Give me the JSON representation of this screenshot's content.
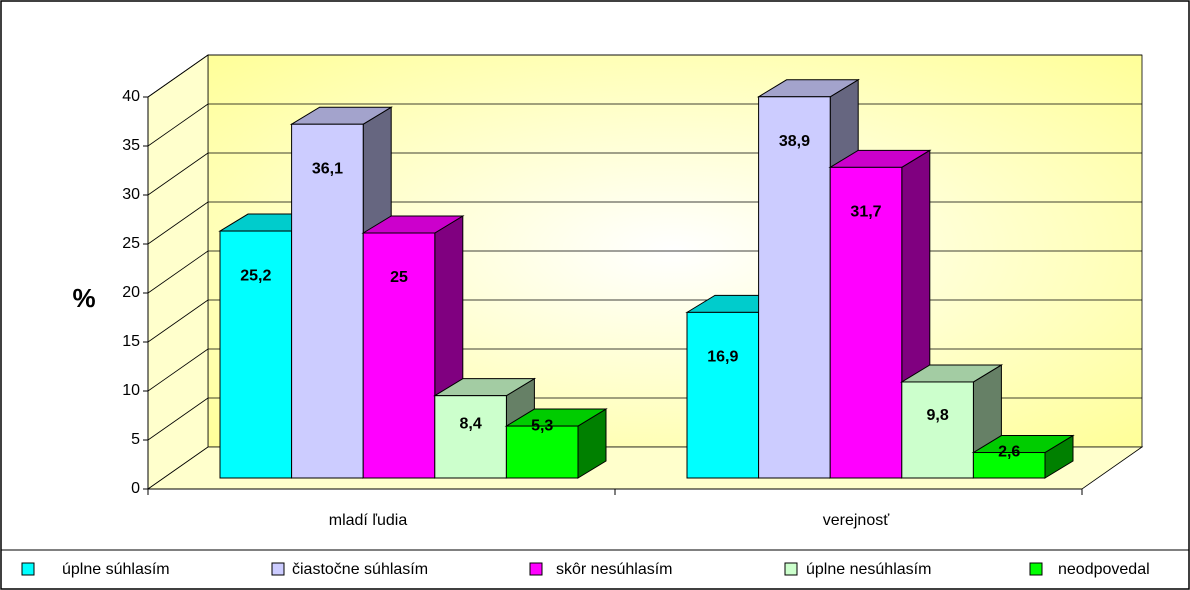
{
  "chart_data": {
    "type": "bar3d",
    "y_label": "%",
    "categories": [
      "mladí ľudia",
      "verejnosť"
    ],
    "series": [
      {
        "name": "úplne súhlasím",
        "color": "#00ffff",
        "values": [
          25.2,
          16.9
        ],
        "value_labels": [
          "25,2",
          "16,9"
        ]
      },
      {
        "name": "čiastočne súhlasím",
        "color": "#ccccff",
        "values": [
          36.1,
          38.9
        ],
        "value_labels": [
          "36,1",
          "38,9"
        ]
      },
      {
        "name": "skôr nesúhlasím",
        "color": "#ff00ff",
        "values": [
          25,
          31.7
        ],
        "value_labels": [
          "25",
          "31,7"
        ]
      },
      {
        "name": "úplne nesúhlasím",
        "color": "#ccffcc",
        "values": [
          8.4,
          9.8
        ],
        "value_labels": [
          "8,4",
          "9,8"
        ]
      },
      {
        "name": "neodpovedal",
        "color": "#00ff00",
        "values": [
          5.3,
          2.6
        ],
        "value_labels": [
          "5,3",
          "2,6"
        ]
      }
    ],
    "ylim": [
      0,
      40
    ],
    "yticks": [
      0,
      5,
      10,
      15,
      20,
      25,
      30,
      35,
      40
    ],
    "grid": true
  }
}
